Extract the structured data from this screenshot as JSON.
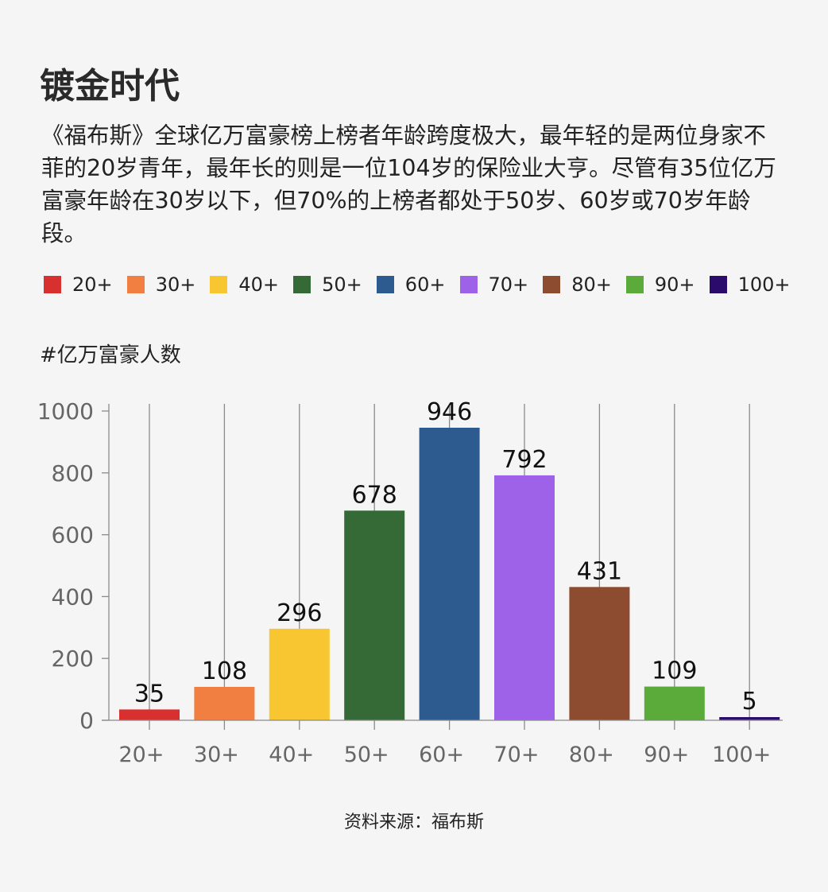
{
  "header": {
    "title": "镀金时代",
    "description": "《福布斯》全球亿万富豪榜上榜者年龄跨度极大，最年轻的是两位身家不菲的20岁青年，最年长的则是一位104岁的保险业大亨。尽管有35位亿万富豪年龄在30岁以下，但70%的上榜者都处于50岁、60岁或70岁年龄段。"
  },
  "footer": {
    "source": "资料来源：福布斯"
  },
  "chart_data": {
    "type": "bar",
    "title": "",
    "ylabel": "#亿万富豪人数",
    "xlabel": "",
    "categories": [
      "20+",
      "30+",
      "40+",
      "50+",
      "60+",
      "70+",
      "80+",
      "90+",
      "100+"
    ],
    "values": [
      35,
      108,
      296,
      678,
      946,
      792,
      431,
      109,
      5
    ],
    "colors": [
      "#d8302f",
      "#f07f41",
      "#f8c630",
      "#356a36",
      "#2d5b90",
      "#9d62e8",
      "#8d4c2f",
      "#5aab3a",
      "#2b0c6d"
    ],
    "yticks": [
      0,
      200,
      400,
      600,
      800,
      1000
    ],
    "ylim": [
      0,
      1000
    ],
    "grid": "vertical",
    "legend": "top",
    "data_labels": true
  }
}
